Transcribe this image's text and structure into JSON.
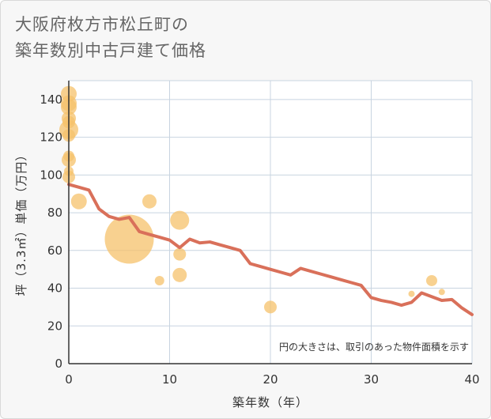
{
  "chart_data": {
    "type": "scatter+line",
    "title_lines": [
      "大阪府枚方市松丘町の",
      "築年数別中古戸建て価格"
    ],
    "xlabel": "築年数（年）",
    "ylabel": "坪（3.3㎡）単価（万円）",
    "xlim": [
      0,
      40
    ],
    "ylim": [
      0,
      150
    ],
    "x_ticks": [
      0,
      10,
      20,
      30,
      40
    ],
    "y_ticks": [
      0,
      20,
      40,
      60,
      80,
      100,
      120,
      140
    ],
    "note": "円の大きさは、取引のあった物件面積を示す",
    "colors": {
      "bubble": "#f5c26b",
      "line": "#d9705a",
      "grid": "#c8d4e0",
      "background": "#f7f7f7",
      "plot_background": "#ffffff"
    },
    "bubbles": [
      {
        "x": 0,
        "y": 143,
        "size": 10
      },
      {
        "x": 0,
        "y": 138,
        "size": 10
      },
      {
        "x": 0,
        "y": 136,
        "size": 10
      },
      {
        "x": 0,
        "y": 130,
        "size": 9
      },
      {
        "x": 0,
        "y": 128,
        "size": 8
      },
      {
        "x": 0,
        "y": 124,
        "size": 12
      },
      {
        "x": 0,
        "y": 121,
        "size": 8
      },
      {
        "x": 0,
        "y": 110,
        "size": 7
      },
      {
        "x": 0,
        "y": 108,
        "size": 9
      },
      {
        "x": 0,
        "y": 102,
        "size": 6
      },
      {
        "x": 0,
        "y": 99,
        "size": 8
      },
      {
        "x": 1,
        "y": 86,
        "size": 10
      },
      {
        "x": 6,
        "y": 66,
        "size": 31
      },
      {
        "x": 8,
        "y": 86,
        "size": 9
      },
      {
        "x": 9,
        "y": 44,
        "size": 6
      },
      {
        "x": 11,
        "y": 76,
        "size": 12
      },
      {
        "x": 11,
        "y": 58,
        "size": 8
      },
      {
        "x": 11,
        "y": 47,
        "size": 9
      },
      {
        "x": 20,
        "y": 30,
        "size": 8
      },
      {
        "x": 34,
        "y": 37,
        "size": 4
      },
      {
        "x": 36,
        "y": 44,
        "size": 7
      },
      {
        "x": 37,
        "y": 38,
        "size": 4
      }
    ],
    "trend_line": {
      "x": [
        0,
        1,
        2,
        3,
        4,
        5,
        6,
        7,
        8,
        9,
        10,
        11,
        12,
        13,
        14,
        15,
        16,
        17,
        18,
        19,
        20,
        21,
        22,
        23,
        24,
        25,
        26,
        27,
        28,
        29,
        30,
        31,
        32,
        33,
        34,
        35,
        36,
        37,
        38,
        39,
        40
      ],
      "y": [
        95,
        93.5,
        92,
        82,
        78,
        76.5,
        77.5,
        70,
        68.5,
        67,
        65.5,
        61.5,
        66,
        64,
        64.5,
        63,
        61.5,
        60,
        53,
        51.5,
        50,
        48.5,
        47,
        50.5,
        49,
        47.5,
        46,
        44.5,
        43,
        41.5,
        35,
        33.5,
        32.5,
        31,
        32.5,
        37.5,
        35.5,
        33.5,
        34,
        29.5,
        26
      ]
    }
  }
}
